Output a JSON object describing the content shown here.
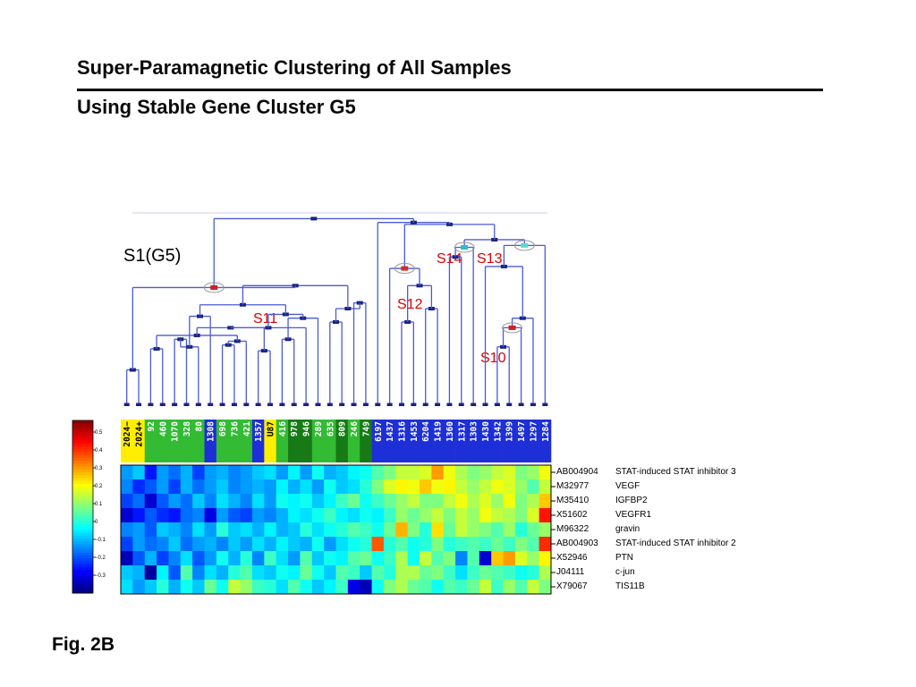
{
  "header": {
    "title_line1": "Super-Paramagnetic Clustering of  All Samples",
    "title_line2": "Using Stable Gene Cluster G5"
  },
  "panel_label": "S1(G5)",
  "cluster_labels": {
    "s14": "S14",
    "s13": "S13",
    "s12": "S12",
    "s11": "S11",
    "s10": "S10"
  },
  "figure_caption": "Fig. 2B",
  "samples": [
    "2024−",
    "2024+",
    "92",
    "460",
    "1070",
    "328",
    "80",
    "1308",
    "698",
    "736",
    "421",
    "1357",
    "U87",
    "416",
    "978",
    "946",
    "289",
    "635",
    "809",
    "246",
    "749",
    "6197",
    "1437",
    "1316",
    "1453",
    "6204",
    "1419",
    "1360",
    "1317",
    "1303",
    "1430",
    "1342",
    "1399",
    "1497",
    "1297",
    "1284"
  ],
  "sample_colors": [
    "#ffee00",
    "#ffee00",
    "#33bb33",
    "#33bb33",
    "#33bb33",
    "#33bb33",
    "#33bb33",
    "#1d2fd6",
    "#33bb33",
    "#33bb33",
    "#33bb33",
    "#1d2fd6",
    "#ffee00",
    "#33bb33",
    "#177a17",
    "#177a17",
    "#33bb33",
    "#33bb33",
    "#177a17",
    "#33bb33",
    "#177a17",
    "#1d2fd6",
    "#1d2fd6",
    "#1d2fd6",
    "#1d2fd6",
    "#1d2fd6",
    "#1d2fd6",
    "#1d2fd6",
    "#1d2fd6",
    "#1d2fd6",
    "#1d2fd6",
    "#1d2fd6",
    "#1d2fd6",
    "#1d2fd6",
    "#1d2fd6",
    "#1d2fd6"
  ],
  "sample_text_colors": [
    "#000000",
    "#000000",
    "#ffffff",
    "#ffffff",
    "#ffffff",
    "#ffffff",
    "#ffffff",
    "#ffffff",
    "#ffffff",
    "#ffffff",
    "#ffffff",
    "#ffffff",
    "#000000",
    "#ffffff",
    "#ffffff",
    "#ffffff",
    "#ffffff",
    "#ffffff",
    "#ffffff",
    "#ffffff",
    "#ffffff",
    "#ffffff",
    "#ffffff",
    "#ffffff",
    "#ffffff",
    "#ffffff",
    "#ffffff",
    "#ffffff",
    "#ffffff",
    "#ffffff",
    "#ffffff",
    "#ffffff",
    "#ffffff",
    "#ffffff",
    "#ffffff",
    "#ffffff"
  ],
  "genes": [
    {
      "id": "AB004904",
      "name": "STAT-induced STAT inhibitor 3"
    },
    {
      "id": "M32977",
      "name": "VEGF"
    },
    {
      "id": "M35410",
      "name": "IGFBP2"
    },
    {
      "id": "X51602",
      "name": "VEGFR1"
    },
    {
      "id": "M96322",
      "name": "gravin"
    },
    {
      "id": "AB004903",
      "name": "STAT-induced STAT inhibitor 2"
    },
    {
      "id": " X52946",
      "name": "PTN"
    },
    {
      "id": "J04111",
      "name": "c-jun"
    },
    {
      "id": "X79067",
      "name": "TIS11B"
    }
  ],
  "colorbar_ticks": [
    "0.5",
    "0.4",
    "0.3",
    "0.2",
    "0.1",
    "0",
    "−0.1",
    "−0.2",
    "−0.3"
  ],
  "heatmap_values": [
    [
      -0.1,
      -0.06,
      -0.22,
      -0.1,
      -0.14,
      -0.08,
      -0.18,
      -0.1,
      -0.08,
      -0.12,
      -0.1,
      -0.06,
      -0.04,
      -0.1,
      -0.02,
      -0.1,
      0.0,
      -0.08,
      -0.06,
      -0.02,
      0.0,
      0.06,
      0.1,
      0.16,
      0.16,
      0.18,
      0.3,
      0.2,
      0.14,
      0.1,
      0.12,
      0.16,
      0.18,
      0.1,
      0.12,
      0.2
    ],
    [
      -0.12,
      -0.2,
      -0.16,
      -0.1,
      -0.18,
      -0.08,
      -0.14,
      -0.1,
      -0.06,
      -0.12,
      -0.1,
      -0.08,
      -0.1,
      -0.02,
      -0.08,
      -0.04,
      -0.1,
      0.0,
      -0.06,
      -0.04,
      0.02,
      0.1,
      0.18,
      0.22,
      0.2,
      0.26,
      0.2,
      0.22,
      0.16,
      0.12,
      0.16,
      0.2,
      0.18,
      0.12,
      0.06,
      0.16
    ],
    [
      -0.18,
      -0.14,
      -0.28,
      -0.16,
      -0.1,
      -0.14,
      -0.06,
      -0.12,
      -0.04,
      -0.08,
      -0.12,
      -0.04,
      -0.1,
      0.0,
      -0.02,
      0.0,
      -0.06,
      -0.02,
      0.04,
      0.08,
      0.0,
      0.04,
      0.08,
      0.12,
      0.16,
      0.1,
      0.1,
      0.16,
      0.2,
      0.14,
      0.18,
      0.12,
      0.2,
      0.1,
      0.14,
      0.26
    ],
    [
      -0.28,
      -0.22,
      -0.16,
      -0.2,
      -0.22,
      -0.14,
      -0.12,
      -0.26,
      -0.1,
      -0.16,
      -0.18,
      -0.1,
      -0.12,
      -0.08,
      -0.02,
      -0.04,
      0.0,
      0.04,
      -0.02,
      -0.04,
      0.0,
      -0.02,
      0.04,
      0.12,
      0.08,
      0.12,
      0.16,
      0.1,
      0.16,
      0.12,
      0.2,
      0.16,
      0.14,
      0.1,
      0.18,
      0.42
    ],
    [
      -0.12,
      -0.1,
      -0.16,
      -0.06,
      -0.08,
      -0.12,
      -0.04,
      -0.1,
      0.02,
      -0.06,
      -0.04,
      -0.08,
      -0.02,
      -0.08,
      -0.06,
      0.02,
      -0.04,
      0.0,
      0.02,
      0.06,
      0.04,
      0.0,
      0.08,
      0.28,
      0.1,
      0.02,
      0.24,
      0.08,
      0.16,
      0.12,
      0.1,
      0.06,
      0.12,
      0.02,
      0.08,
      0.12
    ],
    [
      -0.18,
      -0.1,
      -0.14,
      -0.12,
      -0.06,
      -0.14,
      -0.1,
      -0.08,
      -0.12,
      -0.06,
      -0.1,
      -0.04,
      -0.08,
      -0.02,
      -0.06,
      -0.08,
      0.0,
      -0.1,
      -0.04,
      0.0,
      0.02,
      0.36,
      0.02,
      0.06,
      0.0,
      0.02,
      0.1,
      0.02,
      0.04,
      0.06,
      0.04,
      0.08,
      0.04,
      0.1,
      0.06,
      0.4
    ],
    [
      -0.3,
      -0.16,
      -0.08,
      -0.18,
      -0.12,
      -0.04,
      -0.16,
      -0.1,
      0.0,
      -0.08,
      0.02,
      -0.12,
      0.04,
      -0.04,
      -0.1,
      0.06,
      -0.06,
      0.0,
      -0.02,
      0.06,
      0.08,
      0.0,
      0.04,
      0.14,
      0.0,
      0.16,
      0.06,
      0.1,
      -0.12,
      0.06,
      -0.28,
      0.26,
      0.3,
      0.18,
      0.12,
      0.22
    ],
    [
      -0.06,
      -0.08,
      -0.32,
      -0.02,
      -0.16,
      0.06,
      -0.12,
      -0.04,
      -0.08,
      0.02,
      0.06,
      -0.04,
      -0.06,
      0.0,
      -0.02,
      0.08,
      0.0,
      -0.06,
      0.06,
      0.04,
      -0.06,
      0.06,
      0.02,
      0.14,
      0.14,
      0.08,
      0.1,
      0.04,
      -0.04,
      0.04,
      0.08,
      0.06,
      0.04,
      0.0,
      0.02,
      0.14
    ],
    [
      -0.04,
      -0.1,
      -0.06,
      0.02,
      -0.08,
      0.0,
      -0.06,
      0.08,
      0.0,
      0.16,
      0.12,
      0.04,
      0.02,
      -0.04,
      0.06,
      0.0,
      -0.06,
      -0.02,
      0.04,
      -0.26,
      -0.3,
      0.0,
      0.1,
      0.14,
      0.08,
      0.06,
      0.0,
      0.06,
      0.04,
      0.08,
      0.16,
      0.04,
      0.12,
      0.06,
      0.16,
      0.1
    ]
  ],
  "dendrogram": {
    "merges": [
      [
        0,
        1,
        0.18
      ],
      [
        2,
        3,
        0.29
      ],
      [
        8,
        9,
        0.31
      ],
      [
        38,
        10,
        0.33
      ],
      [
        4,
        5,
        0.34
      ],
      [
        11,
        12,
        0.28
      ],
      [
        37,
        39,
        0.36
      ],
      [
        40,
        6,
        0.3
      ],
      [
        41,
        42,
        0.4
      ],
      [
        13,
        14,
        0.34
      ],
      [
        44,
        15,
        0.4
      ],
      [
        45,
        16,
        0.45
      ],
      [
        17,
        18,
        0.43
      ],
      [
        19,
        20,
        0.53
      ],
      [
        7,
        43,
        0.46
      ],
      [
        47,
        46,
        0.47
      ],
      [
        48,
        49,
        0.5
      ],
      [
        50,
        51,
        0.52
      ],
      [
        52,
        53,
        0.62
      ],
      [
        36,
        54,
        0.61
      ],
      [
        23,
        24,
        0.43
      ],
      [
        25,
        26,
        0.5
      ],
      [
        56,
        57,
        0.62
      ],
      [
        58,
        22,
        0.71
      ],
      [
        27,
        28,
        0.77
      ],
      [
        60,
        29,
        0.82
      ],
      [
        31,
        32,
        0.3
      ],
      [
        62,
        33,
        0.4
      ],
      [
        63,
        34,
        0.45
      ],
      [
        30,
        64,
        0.72
      ],
      [
        65,
        35,
        0.83
      ],
      [
        61,
        66,
        0.86
      ],
      [
        59,
        67,
        0.94
      ],
      [
        68,
        21,
        0.95
      ],
      [
        55,
        69,
        0.97
      ]
    ],
    "marked_clusters": [
      {
        "node": 55,
        "color": "#cc2222"
      },
      {
        "node": 59,
        "color": "#cc3322"
      },
      {
        "node": 61,
        "color": "#33bbcc"
      },
      {
        "node": 66,
        "color": "#55ddcc"
      },
      {
        "node": 63,
        "color": "#cc2222"
      }
    ]
  }
}
